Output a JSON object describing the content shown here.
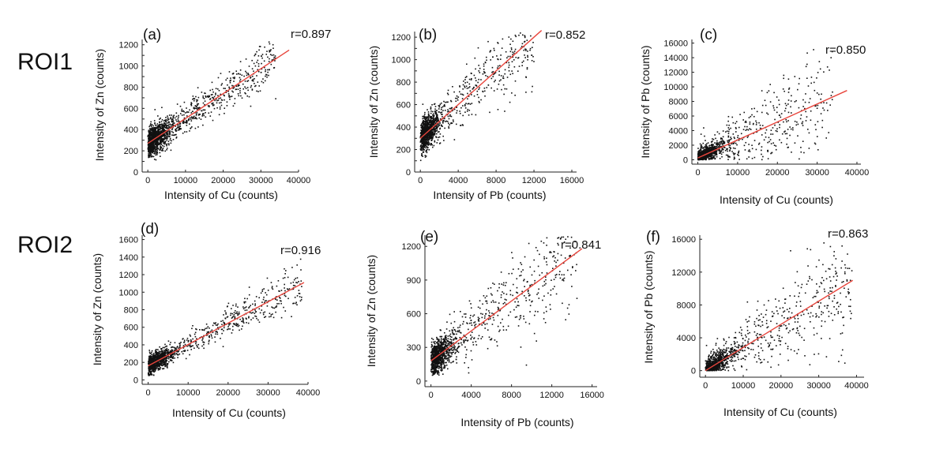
{
  "row_labels": [
    "ROI1",
    "ROI2"
  ],
  "colors": {
    "points": "#111111",
    "fit": "#e8453c",
    "axis": "#222222"
  },
  "chart_data": [
    {
      "type": "scatter",
      "panel": "(a)",
      "row": "ROI1",
      "r_label": "r=0.897",
      "xlabel": "Intensity of Cu (counts)",
      "ylabel": "Intensity of Zn (counts)",
      "xlim": [
        -1500,
        40000
      ],
      "ylim": [
        0,
        1250
      ],
      "xticks": [
        0,
        10000,
        20000,
        30000,
        40000
      ],
      "xtick_labels": [
        "0",
        "10000",
        "20000",
        "30000",
        "40000"
      ],
      "yticks": [
        0,
        100,
        200,
        300,
        400,
        500,
        600,
        700,
        800,
        900,
        1000,
        1100,
        1200
      ],
      "ytick_labels": [
        "0",
        "",
        "200",
        "",
        "400",
        "",
        "600",
        "",
        "800",
        "",
        "1000",
        "",
        "1200"
      ],
      "fit": {
        "x0": 0,
        "y0": 270,
        "x1": 37500,
        "y1": 1150
      },
      "cloud": {
        "n": 1500,
        "dense_x": 5000,
        "dense_frac": 0.6,
        "xmax": 34000,
        "noise_core": 70,
        "noise_tail": 85,
        "floor": 100,
        "seed": 11
      }
    },
    {
      "type": "scatter",
      "panel": "(b)",
      "row": "ROI1",
      "r_label": "r=0.852",
      "xlabel": "Intensity of Pb (counts)",
      "ylabel": "Intensity of Zn (counts)",
      "xlim": [
        -600,
        16500
      ],
      "ylim": [
        0,
        1250
      ],
      "xticks": [
        0,
        4000,
        8000,
        12000,
        16000
      ],
      "xtick_labels": [
        "0",
        "4000",
        "8000",
        "12000",
        "16000"
      ],
      "yticks": [
        0,
        100,
        200,
        300,
        400,
        500,
        600,
        700,
        800,
        900,
        1000,
        1100,
        1200
      ],
      "ytick_labels": [
        "0",
        "",
        "200",
        "",
        "400",
        "",
        "600",
        "",
        "800",
        "",
        "1000",
        "",
        "1200"
      ],
      "fit": {
        "x0": 0,
        "y0": 300,
        "x1": 12800,
        "y1": 1260
      },
      "cloud": {
        "n": 1300,
        "dense_x": 1600,
        "dense_frac": 0.6,
        "xmax": 12000,
        "noise_core": 75,
        "noise_tail": 140,
        "floor": 100,
        "seed": 23
      }
    },
    {
      "type": "scatter",
      "panel": "(c)",
      "row": "ROI1",
      "r_label": "r=0.850",
      "xlabel": "Intensity of Cu (counts)",
      "ylabel": "Intensity of Pb (counts)",
      "xlim": [
        -1500,
        41000
      ],
      "ylim": [
        -600,
        16500
      ],
      "xticks": [
        0,
        10000,
        20000,
        30000,
        40000
      ],
      "xtick_labels": [
        "0",
        "10000",
        "20000",
        "30000",
        "40000"
      ],
      "yticks": [
        0,
        2000,
        4000,
        6000,
        8000,
        10000,
        12000,
        14000,
        16000
      ],
      "ytick_labels": [
        "0",
        "2000",
        "4000",
        "6000",
        "8000",
        "10000",
        "12000",
        "14000",
        "16000"
      ],
      "fit": {
        "x0": 0,
        "y0": 250,
        "x1": 37500,
        "y1": 9500
      },
      "cloud": {
        "n": 1200,
        "dense_x": 5000,
        "dense_frac": 0.62,
        "xmax": 34000,
        "noise_core": 500,
        "noise_tail": 2600,
        "floor": 0,
        "seed": 37
      }
    },
    {
      "type": "scatter",
      "panel": "(d)",
      "row": "ROI2",
      "r_label": "r=0.916",
      "xlabel": "Intensity of Cu (counts)",
      "ylabel": "Intensity of Zn (counts)",
      "xlim": [
        -1500,
        40000
      ],
      "ylim": [
        -50,
        1650
      ],
      "xticks": [
        0,
        10000,
        20000,
        30000,
        40000
      ],
      "xtick_labels": [
        "0",
        "10000",
        "20000",
        "30000",
        "40000"
      ],
      "yticks": [
        0,
        200,
        400,
        600,
        800,
        1000,
        1200,
        1400,
        1600
      ],
      "ytick_labels": [
        "0",
        "200",
        "400",
        "600",
        "800",
        "1000",
        "1200",
        "1400",
        "1600"
      ],
      "fit": {
        "x0": 0,
        "y0": 160,
        "x1": 39000,
        "y1": 1110
      },
      "cloud": {
        "n": 1300,
        "dense_x": 5000,
        "dense_frac": 0.6,
        "xmax": 38500,
        "noise_core": 55,
        "noise_tail": 85,
        "floor": 50,
        "seed": 41
      }
    },
    {
      "type": "scatter",
      "panel": "(e)",
      "row": "ROI2",
      "r_label": "r=0.841",
      "xlabel": "Intensity of Pb (counts)",
      "ylabel": "Intensity of Zn (counts)",
      "xlim": [
        -600,
        16500
      ],
      "ylim": [
        -50,
        1300
      ],
      "xticks": [
        0,
        4000,
        8000,
        12000,
        16000
      ],
      "xtick_labels": [
        "0",
        "4000",
        "8000",
        "12000",
        "16000"
      ],
      "yticks": [
        0,
        300,
        600,
        900,
        1200
      ],
      "ytick_labels": [
        "0",
        "300",
        "600",
        "900",
        "1200"
      ],
      "fit": {
        "x0": 0,
        "y0": 180,
        "x1": 15000,
        "y1": 1180
      },
      "cloud": {
        "n": 1300,
        "dense_x": 1600,
        "dense_frac": 0.62,
        "xmax": 14500,
        "noise_core": 70,
        "noise_tail": 170,
        "floor": 50,
        "seed": 53
      }
    },
    {
      "type": "scatter",
      "panel": "(f)",
      "row": "ROI2",
      "r_label": "r=0.863",
      "xlabel": "Intensity of Cu (counts)",
      "ylabel": "Intensity of Pb (counts)",
      "xlim": [
        -1500,
        42000
      ],
      "ylim": [
        -800,
        16500
      ],
      "xticks": [
        0,
        10000,
        20000,
        30000,
        40000
      ],
      "xtick_labels": [
        "0",
        "10000",
        "20000",
        "30000",
        "40000"
      ],
      "yticks": [
        0,
        4000,
        8000,
        12000,
        16000
      ],
      "ytick_labels": [
        "0",
        "4000",
        "8000",
        "12000",
        "16000"
      ],
      "fit": {
        "x0": 0,
        "y0": 0,
        "x1": 39000,
        "y1": 11000
      },
      "cloud": {
        "n": 1200,
        "dense_x": 6000,
        "dense_frac": 0.58,
        "xmax": 39000,
        "noise_core": 550,
        "noise_tail": 2400,
        "floor": 0,
        "seed": 67
      }
    }
  ]
}
